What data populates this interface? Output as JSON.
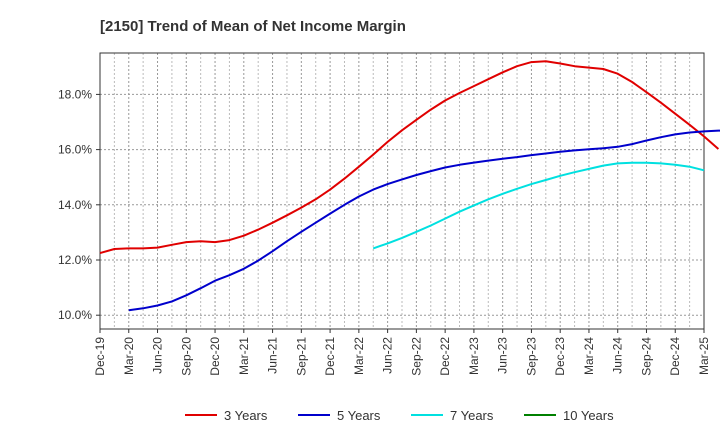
{
  "chart_data": {
    "type": "line",
    "title": "[2150]  Trend of Mean of Net Income Margin",
    "xlabel": "",
    "ylabel": "",
    "x_tick_labels": [
      "Dec-19",
      "Mar-20",
      "Jun-20",
      "Sep-20",
      "Dec-20",
      "Mar-21",
      "Jun-21",
      "Sep-21",
      "Dec-21",
      "Mar-22",
      "Jun-22",
      "Sep-22",
      "Dec-22",
      "Mar-23",
      "Jun-23",
      "Sep-23",
      "Dec-23",
      "Mar-24",
      "Jun-24",
      "Sep-24",
      "Dec-24",
      "Mar-25"
    ],
    "y_ticks": [
      10.0,
      12.0,
      14.0,
      16.0,
      18.0
    ],
    "y_tick_labels": [
      "10.0%",
      "12.0%",
      "14.0%",
      "16.0%",
      "18.0%"
    ],
    "ylim": [
      9.5,
      19.5
    ],
    "grid": true,
    "legend_position": "bottom",
    "series": [
      {
        "name": "3 Years",
        "color": "#e00000",
        "start_index": 0,
        "values": [
          12.25,
          12.4,
          12.42,
          12.42,
          12.45,
          12.55,
          12.65,
          12.68,
          12.65,
          12.72,
          12.88,
          13.1,
          13.35,
          13.62,
          13.9,
          14.2,
          14.55,
          14.95,
          15.38,
          15.82,
          16.28,
          16.7,
          17.08,
          17.45,
          17.78,
          18.05,
          18.3,
          18.55,
          18.8,
          19.02,
          19.17,
          19.2,
          19.12,
          19.02,
          18.97,
          18.92,
          18.75,
          18.45,
          18.08,
          17.7,
          17.3,
          16.9,
          16.48,
          16.02
        ]
      },
      {
        "name": "5 Years",
        "color": "#0000cc",
        "start_index": 2,
        "values": [
          10.18,
          10.25,
          10.35,
          10.5,
          10.72,
          10.98,
          11.25,
          11.45,
          11.68,
          11.98,
          12.32,
          12.68,
          13.02,
          13.35,
          13.68,
          14.0,
          14.3,
          14.55,
          14.75,
          14.92,
          15.08,
          15.22,
          15.35,
          15.45,
          15.53,
          15.6,
          15.67,
          15.73,
          15.8,
          15.86,
          15.92,
          15.97,
          16.01,
          16.05,
          16.1,
          16.2,
          16.33,
          16.45,
          16.55,
          16.62,
          16.66,
          16.69,
          16.7,
          16.68,
          16.6
        ]
      },
      {
        "name": "7 Years",
        "color": "#00e0e0",
        "start_index": 19,
        "values": [
          12.42,
          12.6,
          12.8,
          13.02,
          13.25,
          13.5,
          13.75,
          13.98,
          14.2,
          14.4,
          14.58,
          14.75,
          14.9,
          15.05,
          15.18,
          15.3,
          15.42,
          15.5,
          15.52,
          15.52,
          15.5,
          15.45,
          15.38,
          15.25
        ]
      },
      {
        "name": "10 Years",
        "color": "#008000",
        "start_index": 0,
        "values": []
      }
    ]
  }
}
